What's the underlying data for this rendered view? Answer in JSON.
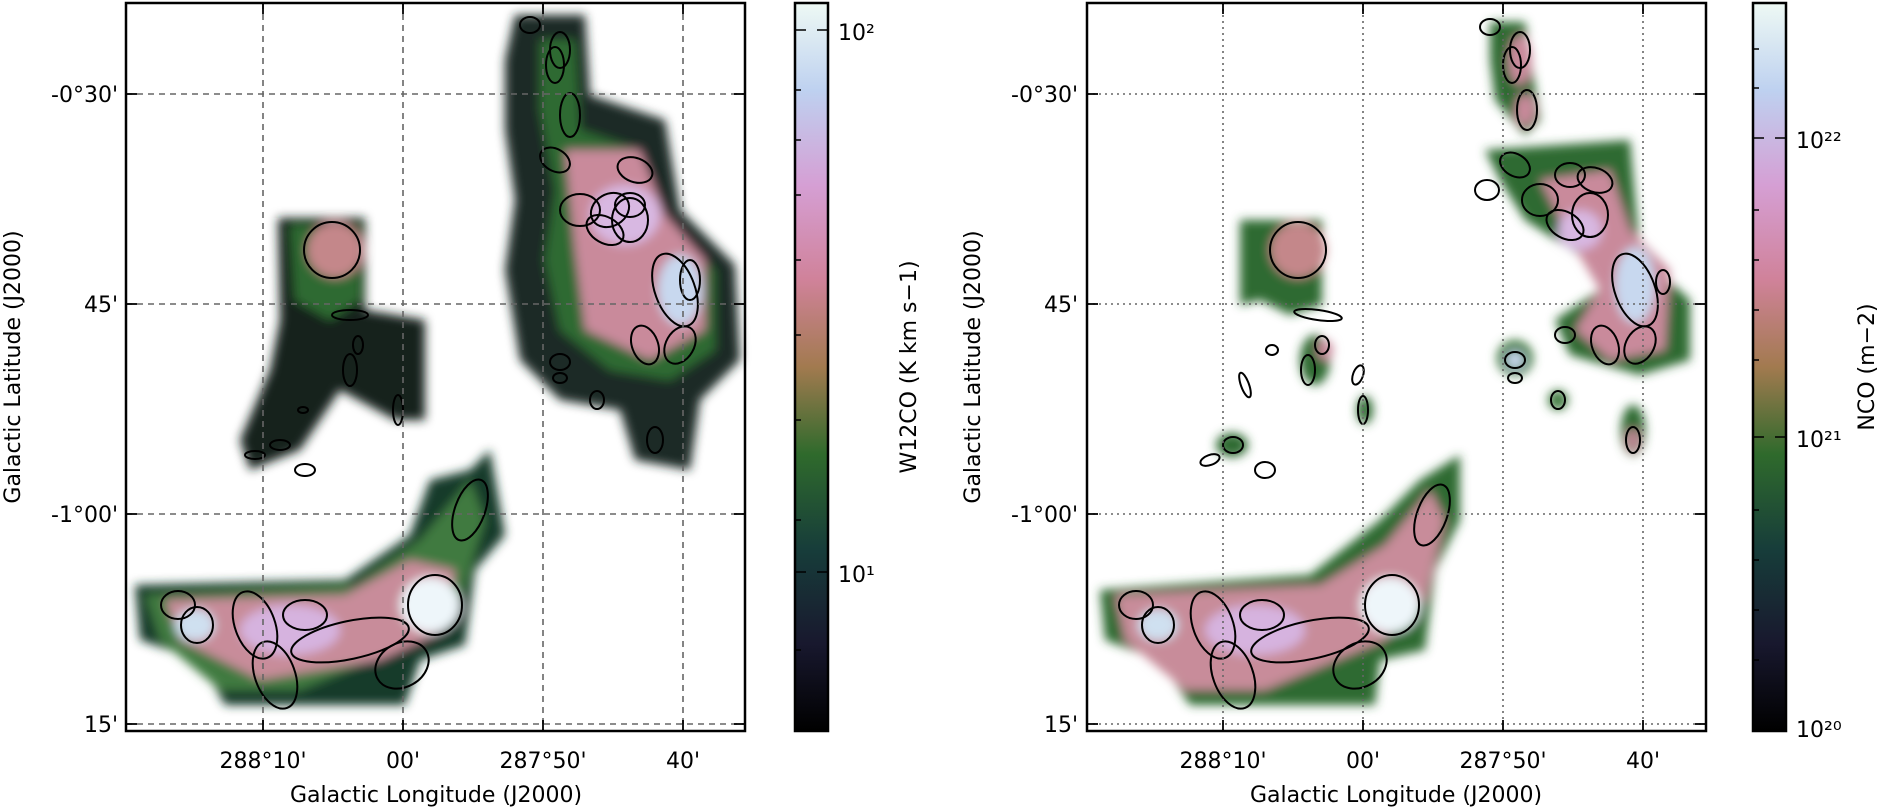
{
  "chart_data": [
    {
      "type": "heatmap",
      "panel": "left",
      "xlabel": "Galactic Longitude (J2000)",
      "ylabel": "Galactic Latitude (J2000)",
      "x_tick_labels": [
        "288°10'",
        "00'",
        "287°50'",
        "40'"
      ],
      "y_tick_labels": [
        "-0°30'",
        "45'",
        "-1°00'",
        "15'"
      ],
      "colorbar": {
        "label_html": "W<tspan baseline-shift='sub' font-size='15'>¹²CO</tspan> (K km s<tspan baseline-shift='super' font-size='15'>−1</tspan>)",
        "label": "W12CO (K km s−1)",
        "scale": "log",
        "tick_labels": [
          "10²",
          "10¹"
        ]
      },
      "grid": "dashed",
      "colormap": "cubehelix"
    },
    {
      "type": "heatmap",
      "panel": "right",
      "xlabel": "Galactic Longitude (J2000)",
      "ylabel": "Galactic Latitude (J2000)",
      "x_tick_labels": [
        "288°10'",
        "00'",
        "287°50'",
        "40'"
      ],
      "y_tick_labels": [
        "-0°30'",
        "45'",
        "-1°00'",
        "15'"
      ],
      "colorbar": {
        "label": "NCO (m−2)",
        "scale": "log",
        "tick_labels": [
          "10²²",
          "10²¹",
          "10²⁰"
        ]
      },
      "grid": "dotted",
      "colormap": "cubehelix"
    }
  ]
}
